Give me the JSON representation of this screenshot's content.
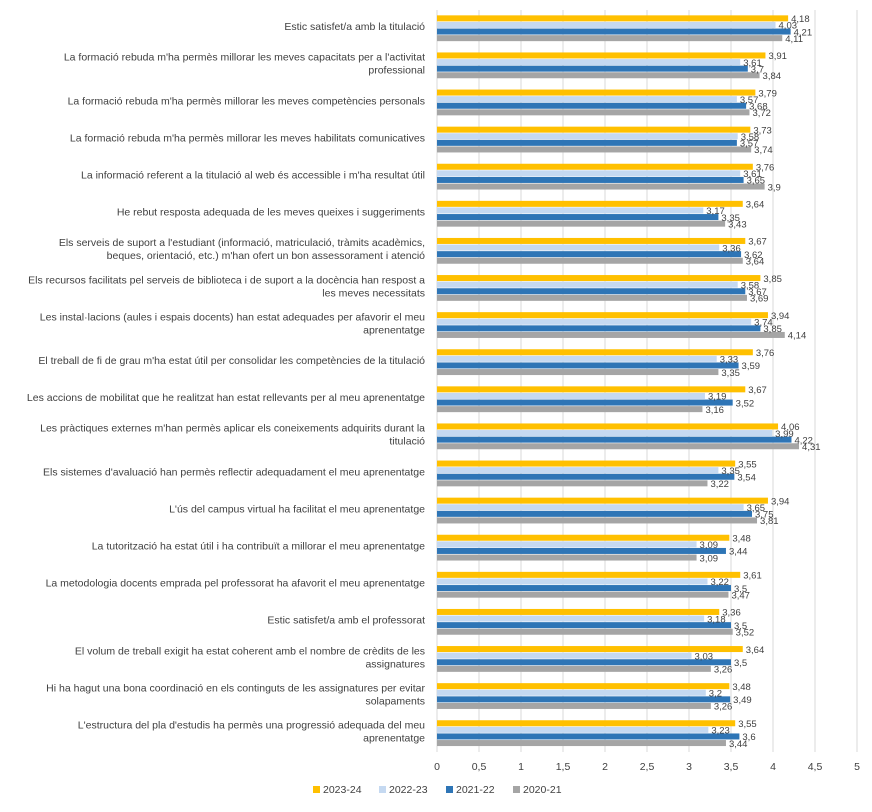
{
  "chart_data": {
    "type": "bar",
    "orientation": "horizontal",
    "categories": [
      "Estic satisfet/a amb la titulació",
      "La formació rebuda m'ha permès millorar les meves capacitats per a l'activitat professional",
      "La formació rebuda m'ha permès millorar les meves competències personals",
      "La formació rebuda m'ha permès millorar les meves habilitats comunicatives",
      "La informació referent a la titulació al web és accessible i m'ha resultat útil",
      "He rebut resposta adequada de les meves queixes i suggeriments",
      "Els serveis de suport a l'estudiant (informació, matriculació, tràmits acadèmics, beques, orientació, etc.) m'han ofert un bon assessorament i atenció",
      "Els recursos facilitats pel serveis de biblioteca i de suport a la docència han respost a les meves necessitats",
      "Les instal·lacions (aules i espais docents) han estat adequades per afavorir el meu aprenentatge",
      "El treball de fi de grau m'ha estat útil per consolidar les competències de la titulació",
      "Les accions de mobilitat que he realitzat han estat rellevants per al meu aprenentatge",
      "Les pràctiques externes m'han permès aplicar els coneixements adquirits durant la titulació",
      "Els sistemes d'avaluació han permès reflectir adequadament el meu aprenentatge",
      "L'ús del campus virtual ha facilitat el meu aprenentatge",
      "La tutorització ha estat útil i ha contribuït a millorar el meu aprenentatge",
      "La metodologia docents emprada pel professorat ha afavorit el meu aprenentatge",
      "Estic satisfet/a amb el professorat",
      "El volum de treball exigit ha estat coherent amb el nombre de crèdits de les assignatures",
      "Hi ha hagut una bona coordinació en els continguts de les assignatures per evitar solapaments",
      "L'estructura del pla d'estudis ha permès una progressió adequada del meu aprenentatge"
    ],
    "category_lines": [
      [
        "Estic satisfet/a amb la titulació"
      ],
      [
        "La formació rebuda m'ha permès millorar les meves capacitats per a l'activitat",
        "professional"
      ],
      [
        "La formació rebuda m'ha permès millorar les meves competències personals"
      ],
      [
        "La formació rebuda m'ha permès millorar les meves habilitats comunicatives"
      ],
      [
        "La informació referent a la titulació al web és accessible i m'ha resultat útil"
      ],
      [
        "He rebut resposta adequada de les meves queixes i suggeriments"
      ],
      [
        "Els serveis de suport a l'estudiant (informació, matriculació, tràmits acadèmics,",
        "beques, orientació, etc.) m'han ofert un bon assessorament i atenció"
      ],
      [
        "Els recursos facilitats pel serveis de biblioteca i de suport a la docència han respost a",
        "les meves necessitats"
      ],
      [
        "Les instal·lacions (aules i espais docents) han estat adequades per afavorir el meu",
        "aprenentatge"
      ],
      [
        "El treball de fi de grau m'ha estat útil per consolidar les competències de la titulació"
      ],
      [
        "Les accions de mobilitat que he realitzat han estat rellevants per al meu aprenentatge"
      ],
      [
        "Les pràctiques externes m'han permès aplicar els coneixements adquirits durant la",
        "titulació"
      ],
      [
        "Els sistemes d'avaluació han permès reflectir adequadament el meu aprenentatge"
      ],
      [
        "L'ús del campus virtual ha facilitat el meu aprenentatge"
      ],
      [
        "La tutorització ha estat útil i ha contribuït a millorar el meu aprenentatge"
      ],
      [
        "La metodologia docents emprada pel professorat ha afavorit el meu aprenentatge"
      ],
      [
        "Estic satisfet/a amb el professorat"
      ],
      [
        "El volum de treball exigit ha estat coherent amb el nombre de crèdits de les",
        "assignatures"
      ],
      [
        "Hi ha hagut una bona coordinació en els continguts de les assignatures per evitar",
        "solapaments"
      ],
      [
        "L'estructura del pla d'estudis ha permès una progressió adequada del meu",
        "aprenentatge"
      ]
    ],
    "series": [
      {
        "name": "2023-24",
        "color": "#ffc000",
        "values": [
          4.18,
          3.91,
          3.79,
          3.73,
          3.76,
          3.64,
          3.67,
          3.85,
          3.94,
          3.76,
          3.67,
          4.06,
          3.55,
          3.94,
          3.48,
          3.61,
          3.36,
          3.64,
          3.48,
          3.55
        ],
        "labels": [
          "4,18",
          "3,91",
          "3,79",
          "3,73",
          "3,76",
          "3,64",
          "3,67",
          "3,85",
          "3,94",
          "3,76",
          "3,67",
          "4,06",
          "3,55",
          "3,94",
          "3,48",
          "3,61",
          "3,36",
          "3,64",
          "3,48",
          "3,55"
        ]
      },
      {
        "name": "2022-23",
        "color": "#c5d9f1",
        "values": [
          4.03,
          3.61,
          3.57,
          3.58,
          3.61,
          3.17,
          3.36,
          3.58,
          3.74,
          3.33,
          3.19,
          3.99,
          3.35,
          3.65,
          3.09,
          3.22,
          3.18,
          3.03,
          3.2,
          3.23
        ],
        "labels": [
          "4,03",
          "3,61",
          "3,57",
          "3,58",
          "3,61",
          "3,17",
          "3,36",
          "3,58",
          "3,74",
          "3,33",
          "3,19",
          "3,99",
          "3,35",
          "3,65",
          "3,09",
          "3,22",
          "3,18",
          "3,03",
          "3,2",
          "3,23"
        ]
      },
      {
        "name": "2021-22",
        "color": "#2e75b6",
        "values": [
          4.21,
          3.7,
          3.68,
          3.57,
          3.65,
          3.35,
          3.62,
          3.67,
          3.85,
          3.59,
          3.52,
          4.22,
          3.54,
          3.75,
          3.44,
          3.5,
          3.5,
          3.5,
          3.49,
          3.6
        ],
        "labels": [
          "4,21",
          "3,7",
          "3,68",
          "3,57",
          "3,65",
          "3,35",
          "3,62",
          "3,67",
          "3,85",
          "3,59",
          "3,52",
          "4,22",
          "3,54",
          "3,75",
          "3,44",
          "3,5",
          "3,5",
          "3,5",
          "3,49",
          "3,6"
        ]
      },
      {
        "name": "2020-21",
        "color": "#a5a5a5",
        "values": [
          4.11,
          3.84,
          3.72,
          3.74,
          3.9,
          3.43,
          3.64,
          3.69,
          4.14,
          3.35,
          3.16,
          4.31,
          3.22,
          3.81,
          3.09,
          3.47,
          3.52,
          3.26,
          3.26,
          3.44
        ],
        "labels": [
          "4,11",
          "3,84",
          "3,72",
          "3,74",
          "3,9",
          "3,43",
          "3,64",
          "3,69",
          "4,14",
          "3,35",
          "3,16",
          "4,31",
          "3,22",
          "3,81",
          "3,09",
          "3,47",
          "3,52",
          "3,26",
          "3,26",
          "3,44"
        ]
      }
    ],
    "xlim": [
      0,
      5
    ],
    "x_ticks": [
      0,
      0.5,
      1,
      1.5,
      2,
      2.5,
      3,
      3.5,
      4,
      4.5,
      5
    ],
    "x_tick_labels": [
      "0",
      "0,5",
      "1",
      "1,5",
      "2",
      "2,5",
      "3",
      "3,5",
      "4",
      "4,5",
      "5"
    ],
    "title": "",
    "xlabel": "",
    "ylabel": "",
    "grid": true,
    "legend_position": "bottom"
  }
}
